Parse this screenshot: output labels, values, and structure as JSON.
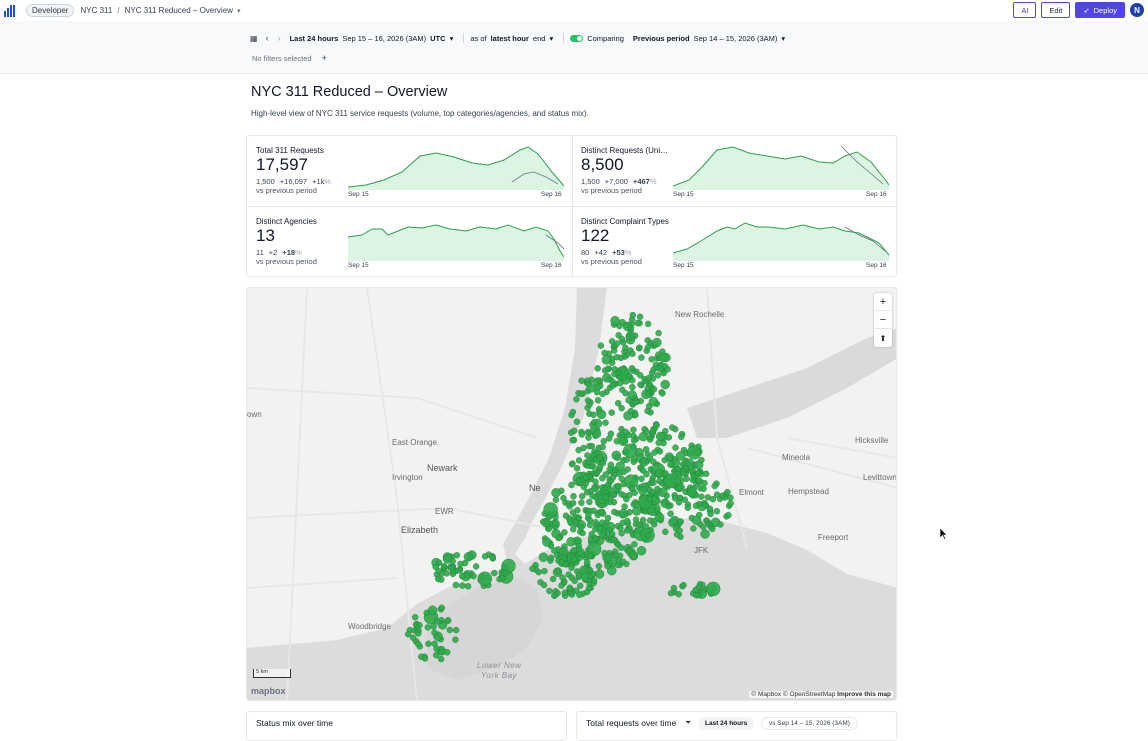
{
  "topbar": {
    "org_badge": "Developer",
    "project": "NYC 311",
    "dashboard": "NYC 311 Reduced – Overview",
    "ai_label": "AI",
    "edit_label": "Edit",
    "deploy_label": "Deploy",
    "avatar_initial": "N"
  },
  "filters": {
    "range_label": "Last 24 hours",
    "range_dates": "Sep 15 – 16, 2026 (3AM)",
    "timezone": "UTC",
    "as_of_prefix": "as of",
    "as_of_value": "latest hour",
    "as_of_suffix": "end",
    "comparing_label": "Comparing",
    "comparison_label": "Previous period",
    "comparison_dates": "Sep 14 – 15, 2026 (3AM)",
    "no_filters": "No filters selected"
  },
  "page": {
    "title": "NYC 311 Reduced – Overview",
    "subtitle": "High-level view of NYC 311 service requests (volume, top categories/agencies, and status mix)."
  },
  "kpis": [
    {
      "name": "Total 311 Requests",
      "value": "17,597",
      "prev": "1,500",
      "delta": "+16,097",
      "pct": "+1k",
      "pct_sign": "%",
      "vs": "vs previous period",
      "start": "Sep 15",
      "end": "Sep 16"
    },
    {
      "name": "Distinct Requests (Unique Keys)",
      "value": "8,500",
      "prev": "1,500",
      "delta": "+7,000",
      "pct": "+467",
      "pct_sign": "%",
      "vs": "vs previous period",
      "start": "Sep 15",
      "end": "Sep 16"
    },
    {
      "name": "Distinct Agencies",
      "value": "13",
      "prev": "11",
      "delta": "+2",
      "pct": "+18",
      "pct_sign": "%",
      "vs": "vs previous period",
      "start": "Sep 15",
      "end": "Sep 16"
    },
    {
      "name": "Distinct Complaint Types",
      "value": "122",
      "prev": "80",
      "delta": "+42",
      "pct": "+53",
      "pct_sign": "%",
      "vs": "vs previous period",
      "start": "Sep 15",
      "end": "Sep 16"
    }
  ],
  "map": {
    "labels": [
      "New Rochelle",
      "own",
      "East Orange",
      "Newark",
      "Irvington",
      "Elizabeth",
      "EWR",
      "Hicksville",
      "Mineola",
      "Hempstead",
      "Levittown",
      "Freeport",
      "Elmont",
      "JFK",
      "Woodbridge",
      "Lower New",
      "York Bay",
      "Ne"
    ],
    "zoom_in": "+",
    "zoom_out": "−",
    "reset": "⬆",
    "scale": "5 km",
    "logo": "mapbox",
    "attribution_a": "© Mapbox © OpenStreetMap",
    "attribution_b": "Improve this map",
    "point_color": "#2faa4b"
  },
  "cards": {
    "status_mix_title": "Status mix over time",
    "total_requests_title": "Total requests over time",
    "range_pill": "Last 24 hours",
    "compare_pill": "vs Sep 14 – 15, 2026 (3AM)"
  },
  "colors": {
    "accent": "#4f46e5",
    "spark_line": "#2e9e4e",
    "spark_fill": "#dcf5e3",
    "compare_line": "#6b7280"
  }
}
